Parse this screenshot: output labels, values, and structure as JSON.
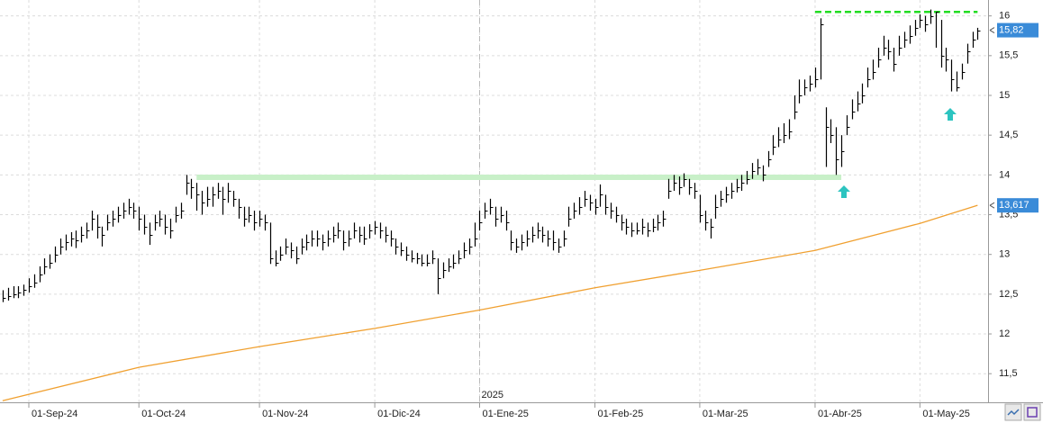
{
  "chart_data": {
    "type": "ohlc",
    "xlim": [
      -0.5,
      188
    ],
    "ylim": [
      11.14,
      16.2
    ],
    "xticks": [
      {
        "value": 5,
        "label": "01-Sep-24"
      },
      {
        "value": 26,
        "label": "01-Oct-24"
      },
      {
        "value": 49,
        "label": "01-Nov-24"
      },
      {
        "value": 71,
        "label": "01-Dic-24"
      },
      {
        "value": 91,
        "label": "01-Ene-25"
      },
      {
        "value": 113,
        "label": "01-Feb-25"
      },
      {
        "value": 133,
        "label": "01-Mar-25"
      },
      {
        "value": 155,
        "label": "01-Abr-25"
      },
      {
        "value": 175,
        "label": "01-May-25"
      }
    ],
    "yticks": [
      {
        "value": 16,
        "label": "16"
      },
      {
        "value": 15.5,
        "label": "15,5"
      },
      {
        "value": 15,
        "label": "15"
      },
      {
        "value": 14.5,
        "label": "14,5"
      },
      {
        "value": 14,
        "label": "14"
      },
      {
        "value": 13.5,
        "label": "13,5"
      },
      {
        "value": 13,
        "label": "13"
      },
      {
        "value": 12.5,
        "label": "12,5"
      },
      {
        "value": 12,
        "label": "12"
      },
      {
        "value": 11.5,
        "label": "11,5"
      }
    ],
    "grid": true,
    "year_marker": {
      "value": 91,
      "label": "2025"
    },
    "color": "#000000",
    "high": [
      12.55,
      12.58,
      12.6,
      12.6,
      12.62,
      12.7,
      12.75,
      12.85,
      12.95,
      13.0,
      13.1,
      13.2,
      13.25,
      13.28,
      13.3,
      13.35,
      13.4,
      13.55,
      13.5,
      13.35,
      13.5,
      13.55,
      13.6,
      13.65,
      13.7,
      13.65,
      13.6,
      13.5,
      13.4,
      13.5,
      13.55,
      13.5,
      13.45,
      13.6,
      13.65,
      14.0,
      13.95,
      13.9,
      13.8,
      13.85,
      13.85,
      13.9,
      13.85,
      13.9,
      13.8,
      13.7,
      13.6,
      13.6,
      13.55,
      13.55,
      13.5,
      13.4,
      13.05,
      13.1,
      13.2,
      13.15,
      13.1,
      13.2,
      13.25,
      13.3,
      13.3,
      13.25,
      13.3,
      13.35,
      13.4,
      13.3,
      13.3,
      13.4,
      13.35,
      13.35,
      13.38,
      13.42,
      13.4,
      13.35,
      13.3,
      13.2,
      13.15,
      13.1,
      13.05,
      13.02,
      13.0,
      13.0,
      13.05,
      12.95,
      12.9,
      12.95,
      13.0,
      13.05,
      13.15,
      13.2,
      13.4,
      13.55,
      13.65,
      13.7,
      13.6,
      13.6,
      13.55,
      13.3,
      13.2,
      13.25,
      13.3,
      13.35,
      13.4,
      13.35,
      13.3,
      13.3,
      13.2,
      13.3,
      13.6,
      13.65,
      13.72,
      13.8,
      13.75,
      13.7,
      13.88,
      13.75,
      13.65,
      13.6,
      13.5,
      13.45,
      13.4,
      13.4,
      13.45,
      13.4,
      13.45,
      13.5,
      13.55,
      13.95,
      14.0,
      13.98,
      14.02,
      13.95,
      13.9,
      13.75,
      13.55,
      13.45,
      13.75,
      13.8,
      13.85,
      13.9,
      13.95,
      14.0,
      14.05,
      14.15,
      14.2,
      14.12,
      14.3,
      14.5,
      14.6,
      14.65,
      14.7,
      15.0,
      15.2,
      15.2,
      15.25,
      15.35,
      15.97,
      14.85,
      14.7,
      14.6,
      14.5,
      14.75,
      14.95,
      15.05,
      15.15,
      15.35,
      15.45,
      15.6,
      15.75,
      15.7,
      15.6,
      15.75,
      15.8,
      15.88,
      15.95,
      16.02,
      16.0,
      16.08,
      16.05,
      15.95,
      15.6,
      15.45,
      15.3,
      15.4,
      15.65,
      15.8,
      15.85
    ],
    "low": [
      12.4,
      12.42,
      12.45,
      12.45,
      12.48,
      12.52,
      12.58,
      12.65,
      12.75,
      12.82,
      12.9,
      13.0,
      13.05,
      13.1,
      13.08,
      13.15,
      13.2,
      13.3,
      13.2,
      13.1,
      13.3,
      13.35,
      13.4,
      13.45,
      13.5,
      13.45,
      13.3,
      13.25,
      13.12,
      13.3,
      13.35,
      13.25,
      13.2,
      13.4,
      13.45,
      13.75,
      13.7,
      13.55,
      13.5,
      13.6,
      13.6,
      13.7,
      13.5,
      13.65,
      13.6,
      13.45,
      13.35,
      13.4,
      13.3,
      13.35,
      13.3,
      12.88,
      12.85,
      12.92,
      13.0,
      12.95,
      12.88,
      13.0,
      13.05,
      13.1,
      13.1,
      13.05,
      13.1,
      13.15,
      13.2,
      13.05,
      13.1,
      13.2,
      13.15,
      13.12,
      13.2,
      13.25,
      13.2,
      13.15,
      13.1,
      13.0,
      12.98,
      12.92,
      12.9,
      12.88,
      12.85,
      12.85,
      12.88,
      12.5,
      12.7,
      12.78,
      12.82,
      12.88,
      12.95,
      13.0,
      13.1,
      13.3,
      13.45,
      13.5,
      13.35,
      13.4,
      13.3,
      13.05,
      13.02,
      13.05,
      13.1,
      13.15,
      13.2,
      13.15,
      13.1,
      13.05,
      13.02,
      13.1,
      13.35,
      13.45,
      13.5,
      13.6,
      13.55,
      13.5,
      13.6,
      13.5,
      13.45,
      13.4,
      13.3,
      13.25,
      13.22,
      13.25,
      13.25,
      13.22,
      13.28,
      13.3,
      13.35,
      13.7,
      13.8,
      13.75,
      13.85,
      13.75,
      13.7,
      13.4,
      13.3,
      13.2,
      13.45,
      13.6,
      13.65,
      13.7,
      13.78,
      13.8,
      13.88,
      13.95,
      14.0,
      13.92,
      14.1,
      14.25,
      14.35,
      14.4,
      14.45,
      14.7,
      14.9,
      15.0,
      15.05,
      15.1,
      15.2,
      14.1,
      14.4,
      14.0,
      14.1,
      14.5,
      14.7,
      14.8,
      14.9,
      15.1,
      15.2,
      15.35,
      15.5,
      15.45,
      15.3,
      15.5,
      15.6,
      15.65,
      15.75,
      15.85,
      15.8,
      15.9,
      15.6,
      15.35,
      15.3,
      15.05,
      15.05,
      15.2,
      15.4,
      15.6,
      15.7
    ],
    "close": [
      12.45,
      12.48,
      12.5,
      12.52,
      12.55,
      12.6,
      12.65,
      12.75,
      12.85,
      12.9,
      13.0,
      13.1,
      13.15,
      13.2,
      13.18,
      13.25,
      13.3,
      13.45,
      13.35,
      13.25,
      13.4,
      13.45,
      13.5,
      13.55,
      13.6,
      13.55,
      13.45,
      13.35,
      13.25,
      13.4,
      13.45,
      13.35,
      13.3,
      13.5,
      13.55,
      13.9,
      13.85,
      13.75,
      13.65,
      13.7,
      13.75,
      13.8,
      13.7,
      13.8,
      13.7,
      13.6,
      13.45,
      13.5,
      13.4,
      13.45,
      13.4,
      12.95,
      12.9,
      13.0,
      13.1,
      13.05,
      12.95,
      13.1,
      13.15,
      13.2,
      13.2,
      13.15,
      13.2,
      13.25,
      13.3,
      13.15,
      13.2,
      13.3,
      13.25,
      13.2,
      13.3,
      13.35,
      13.3,
      13.25,
      13.2,
      13.1,
      13.05,
      13.0,
      12.95,
      12.95,
      12.9,
      12.9,
      12.95,
      12.7,
      12.8,
      12.85,
      12.9,
      12.95,
      13.05,
      13.1,
      13.2,
      13.4,
      13.55,
      13.6,
      13.45,
      13.5,
      13.4,
      13.15,
      13.1,
      13.15,
      13.2,
      13.25,
      13.3,
      13.25,
      13.2,
      13.15,
      13.1,
      13.2,
      13.45,
      13.55,
      13.6,
      13.7,
      13.65,
      13.6,
      13.75,
      13.6,
      13.55,
      13.5,
      13.4,
      13.35,
      13.3,
      13.3,
      13.35,
      13.3,
      13.35,
      13.4,
      13.45,
      13.8,
      13.9,
      13.85,
      13.95,
      13.85,
      13.8,
      13.5,
      13.4,
      13.35,
      13.6,
      13.7,
      13.75,
      13.8,
      13.85,
      13.9,
      13.95,
      14.05,
      14.1,
      14.0,
      14.2,
      14.35,
      14.45,
      14.5,
      14.55,
      14.8,
      15.0,
      15.1,
      15.15,
      15.2,
      15.9,
      14.6,
      14.5,
      14.2,
      14.3,
      14.6,
      14.8,
      14.9,
      15.0,
      15.2,
      15.3,
      15.45,
      15.6,
      15.55,
      15.4,
      15.6,
      15.7,
      15.75,
      15.85,
      15.95,
      15.9,
      16.0,
      16.05,
      15.5,
      15.45,
      15.2,
      15.1,
      15.3,
      15.55,
      15.7,
      15.82
    ],
    "moving_average": {
      "color": "#f0a030",
      "x": [
        0,
        26,
        49,
        71,
        91,
        113,
        133,
        155,
        175,
        186
      ],
      "values": [
        11.16,
        11.58,
        11.84,
        12.07,
        12.3,
        12.58,
        12.8,
        13.05,
        13.39,
        13.617
      ]
    },
    "levels": [
      {
        "value": 16.05,
        "from": 155,
        "to": 186,
        "color": "#22dd22",
        "style": "dashed"
      },
      {
        "value": 13.97,
        "from": 37,
        "to": 160,
        "color": "#c8f0c8",
        "style": "band"
      }
    ],
    "price_tags": [
      {
        "value": 15.82,
        "label": "15,82",
        "color": "#3a8bd8"
      },
      {
        "value": 13.617,
        "label": "13,617",
        "color": "#3a8bd8"
      }
    ]
  }
}
